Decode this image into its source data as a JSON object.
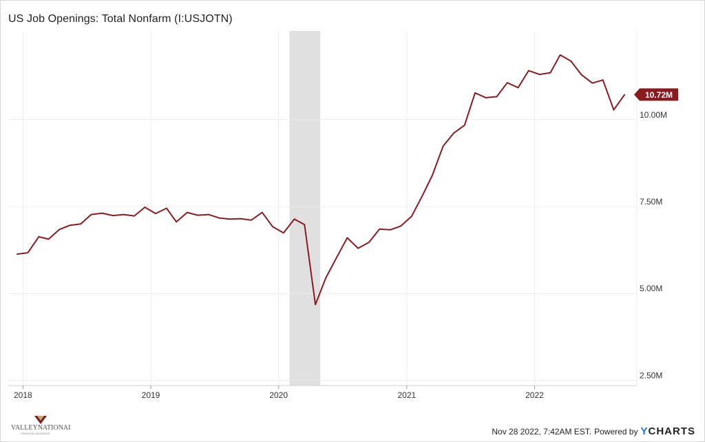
{
  "chart_data": {
    "type": "line",
    "title": "US Job Openings: Total Nonfarm (I:USJOTN)",
    "y_ticks": [
      "2.50M",
      "5.00M",
      "7.50M",
      "10.00M"
    ],
    "y_tick_values": [
      2.5,
      5.0,
      7.5,
      10.0
    ],
    "ylim": [
      2.35,
      12.55
    ],
    "x_ticks": [
      "2018",
      "2019",
      "2020",
      "2021",
      "2022"
    ],
    "x_tick_dates": [
      "2018-01",
      "2019-01",
      "2020-01",
      "2021-01",
      "2022-01"
    ],
    "xlim": [
      "2017-11-20",
      "2022-10-20"
    ],
    "grid": true,
    "recession_band": [
      "2020-02",
      "2020-04"
    ],
    "line_color": "#8b1a1f",
    "last_value_label": "10.72M",
    "series": [
      {
        "x": [
          "2017-12",
          "2018-01",
          "2018-02",
          "2018-03",
          "2018-04",
          "2018-05",
          "2018-06",
          "2018-07",
          "2018-08",
          "2018-09",
          "2018-10",
          "2018-11",
          "2018-12",
          "2019-01",
          "2019-02",
          "2019-03",
          "2019-04",
          "2019-05",
          "2019-06",
          "2019-07",
          "2019-08",
          "2019-09",
          "2019-10",
          "2019-11",
          "2019-12",
          "2020-01",
          "2020-02",
          "2020-03",
          "2020-04",
          "2020-05",
          "2020-06",
          "2020-07",
          "2020-08",
          "2020-09",
          "2020-10",
          "2020-11",
          "2020-12",
          "2021-01",
          "2021-02",
          "2021-03",
          "2021-04",
          "2021-05",
          "2021-06",
          "2021-07",
          "2021-08",
          "2021-09",
          "2021-10",
          "2021-11",
          "2021-12",
          "2022-01",
          "2022-02",
          "2022-03",
          "2022-04",
          "2022-05",
          "2022-06",
          "2022-07",
          "2022-08",
          "2022-09"
        ],
        "values": [
          6.13,
          6.17,
          6.63,
          6.56,
          6.84,
          6.96,
          7.0,
          7.27,
          7.31,
          7.24,
          7.27,
          7.23,
          7.48,
          7.3,
          7.45,
          7.06,
          7.33,
          7.25,
          7.27,
          7.17,
          7.14,
          7.15,
          7.11,
          7.33,
          6.92,
          6.74,
          7.14,
          6.98,
          4.68,
          5.45,
          6.04,
          6.6,
          6.3,
          6.47,
          6.85,
          6.83,
          6.94,
          7.22,
          7.82,
          8.4,
          9.24,
          9.61,
          9.84,
          10.77,
          10.63,
          10.66,
          11.06,
          10.92,
          11.41,
          11.3,
          11.35,
          11.86,
          11.68,
          11.29,
          11.05,
          11.14,
          10.28,
          10.72
        ]
      }
    ]
  },
  "footer": {
    "timestamp": "Nov 28 2022, 7:42AM EST.",
    "powered_by": "Powered by",
    "brand_y": "Y",
    "brand_rest": "CHARTS",
    "logo_text": "VALLEYNATIONAL",
    "logo_subtext": "FINANCIAL ADVISORS"
  }
}
